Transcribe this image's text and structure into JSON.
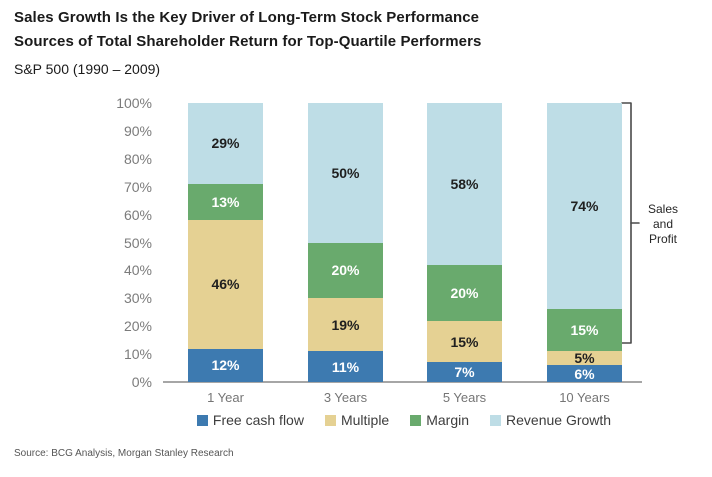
{
  "header": {
    "title_line1": "Sales Growth Is the Key Driver of Long-Term Stock Performance",
    "title_line2": "Sources of Total Shareholder Return for Top-Quartile Performers",
    "subtitle": "S&P 500 (1990 – 2009)"
  },
  "annotation": {
    "bracket_label": "Sales\nand\nProfit"
  },
  "footer": {
    "source": "Source: BCG Analysis, Morgan Stanley Research"
  },
  "chart_data": {
    "type": "bar",
    "stacked": true,
    "title": "Sources of Total Shareholder Return for Top-Quartile Performers",
    "subtitle": "S&P 500 (1990 – 2009)",
    "categories": [
      "1 Year",
      "3 Years",
      "5 Years",
      "10 Years"
    ],
    "series": [
      {
        "name": "Free cash flow",
        "color": "#3d7ab0",
        "label_color": "#ffffff",
        "values": [
          12,
          11,
          7,
          6
        ]
      },
      {
        "name": "Multiple",
        "color": "#e5d193",
        "label_color": "#1f1f1f",
        "values": [
          46,
          19,
          15,
          5
        ]
      },
      {
        "name": "Margin",
        "color": "#69aa6d",
        "label_color": "#ffffff",
        "values": [
          13,
          20,
          20,
          15
        ]
      },
      {
        "name": "Revenue Growth",
        "color": "#bedde6",
        "label_color": "#1f1f1f",
        "values": [
          29,
          50,
          58,
          74
        ]
      }
    ],
    "value_suffix": "%",
    "y_ticks": [
      "0%",
      "10%",
      "20%",
      "30%",
      "40%",
      "50%",
      "60%",
      "70%",
      "80%",
      "90%",
      "100%"
    ],
    "ylim": [
      0,
      100
    ],
    "grid": false,
    "legend_position": "bottom",
    "annotation_note": "Bracket labeled 'Sales and Profit' spans the Margin + Revenue Growth segments (top 89%) of the 10 Years bar",
    "colors": {
      "baseline": "#a6a6a6",
      "axis_text": "#7b7b7b",
      "bracket": "#4a4a4a"
    }
  }
}
